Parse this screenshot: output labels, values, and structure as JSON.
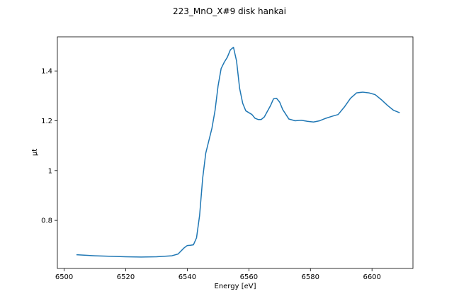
{
  "chart_data": {
    "type": "line",
    "title": "223_MnO_X#9 disk hankai",
    "xlabel": "Energy [eV]",
    "ylabel": "μt",
    "x": [
      6504,
      6510,
      6520,
      6525,
      6530,
      6535,
      6537,
      6539,
      6540,
      6541,
      6542,
      6543,
      6544,
      6545,
      6546,
      6547,
      6548,
      6549,
      6550,
      6551,
      6552,
      6553,
      6554,
      6555,
      6556,
      6557,
      6558,
      6559,
      6561,
      6562,
      6563,
      6564,
      6565,
      6567,
      6568,
      6569,
      6570,
      6571,
      6573,
      6575,
      6577,
      6579,
      6581,
      6583,
      6585,
      6587,
      6589,
      6591,
      6593,
      6595,
      6597,
      6599,
      6601,
      6603,
      6605,
      6607,
      6609
    ],
    "series": [
      {
        "name": "μt",
        "color": "#1f77b4",
        "values": [
          0.662,
          0.658,
          0.654,
          0.653,
          0.654,
          0.658,
          0.665,
          0.69,
          0.699,
          0.7,
          0.702,
          0.73,
          0.82,
          0.97,
          1.07,
          1.12,
          1.17,
          1.24,
          1.34,
          1.41,
          1.435,
          1.455,
          1.485,
          1.495,
          1.44,
          1.33,
          1.27,
          1.24,
          1.225,
          1.21,
          1.205,
          1.205,
          1.215,
          1.26,
          1.288,
          1.29,
          1.275,
          1.245,
          1.207,
          1.2,
          1.202,
          1.198,
          1.195,
          1.2,
          1.21,
          1.218,
          1.225,
          1.255,
          1.29,
          1.312,
          1.315,
          1.312,
          1.305,
          1.285,
          1.262,
          1.242,
          1.232
        ]
      }
    ],
    "xlim": [
      6497.8,
      6613.3
    ],
    "xticks": [
      6500,
      6520,
      6540,
      6560,
      6580,
      6600
    ],
    "ylim": [
      0.607,
      1.537
    ],
    "yticks": [
      0.8,
      1.0,
      1.2,
      1.4
    ],
    "grid": false
  }
}
